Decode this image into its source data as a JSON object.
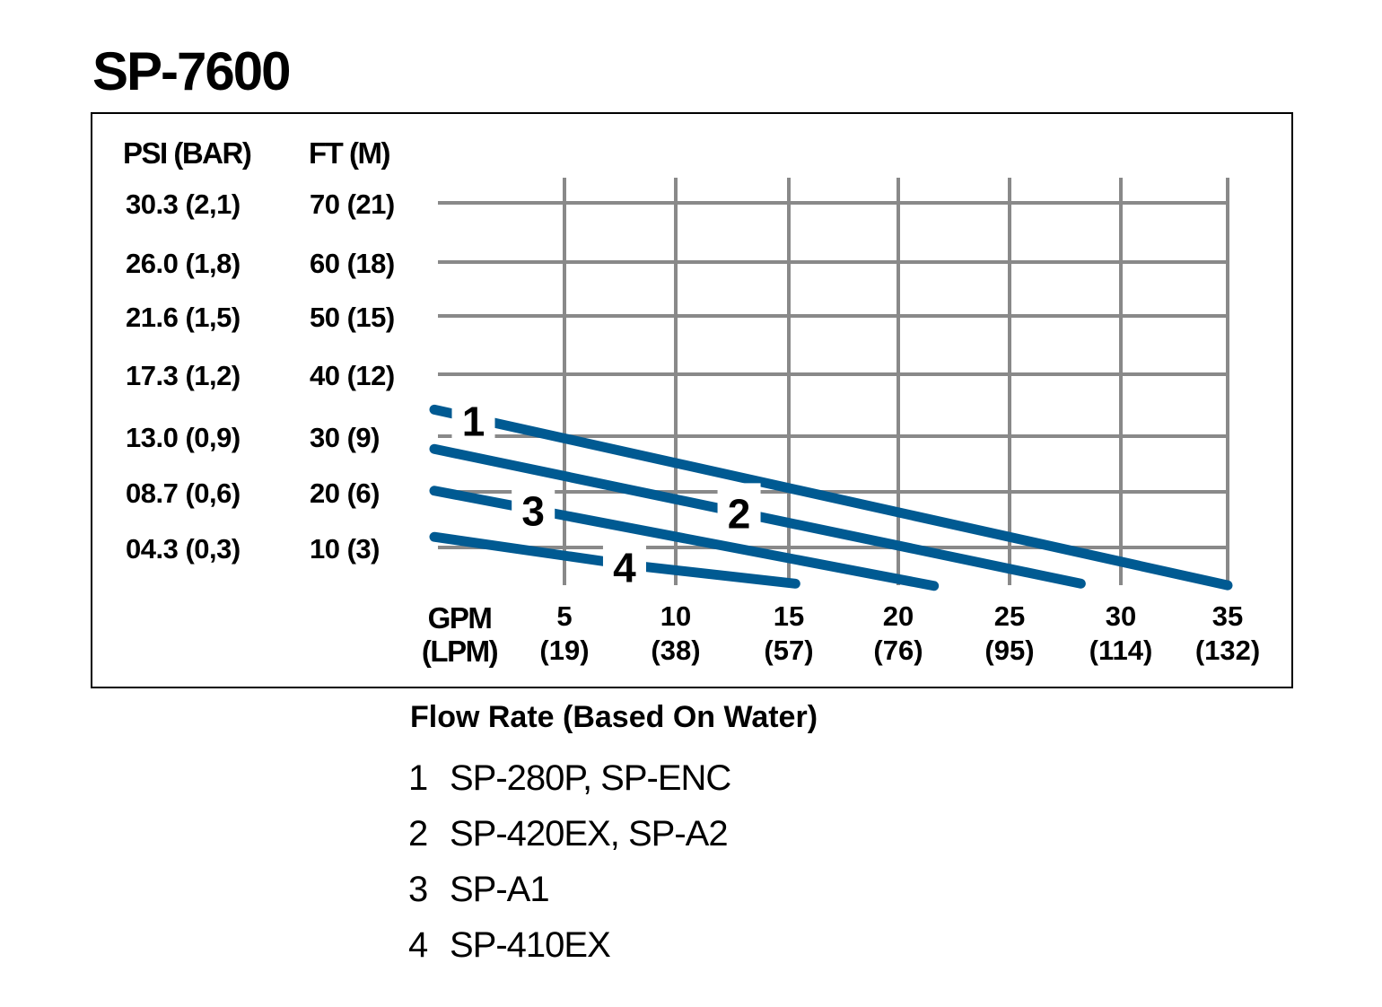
{
  "chart_data": {
    "type": "line",
    "title": "SP-7600",
    "xlabel": "Flow Rate (Based On Water)",
    "x_axis_label": [
      "GPM",
      "(LPM)"
    ],
    "y_axis_headers": [
      "PSI (BAR)",
      "FT (M)"
    ],
    "x_ticks": [
      {
        "gpm": 5,
        "top": "5",
        "bottom": "(19)"
      },
      {
        "gpm": 10,
        "top": "10",
        "bottom": "(38)"
      },
      {
        "gpm": 15,
        "top": "15",
        "bottom": "(57)"
      },
      {
        "gpm": 20,
        "top": "20",
        "bottom": "(76)"
      },
      {
        "gpm": 25,
        "top": "25",
        "bottom": "(95)"
      },
      {
        "gpm": 30,
        "top": "30",
        "bottom": "(114)"
      },
      {
        "gpm": 35,
        "top": "35",
        "bottom": "(132)"
      }
    ],
    "y_ticks": [
      {
        "ft": 70,
        "psi": "30.3 (2,1)",
        "ftlabel": "70 (21)"
      },
      {
        "ft": 60,
        "psi": "26.0 (1,8)",
        "ftlabel": "60 (18)"
      },
      {
        "ft": 50,
        "psi": "21.6 (1,5)",
        "ftlabel": "50 (15)"
      },
      {
        "ft": 40,
        "psi": "17.3 (1,2)",
        "ftlabel": "40 (12)"
      },
      {
        "ft": 30,
        "psi": "13.0 (0,9)",
        "ftlabel": "30 (9)"
      },
      {
        "ft": 20,
        "psi": "08.7 (0,6)",
        "ftlabel": "20 (6)"
      },
      {
        "ft": 10,
        "psi": "04.3 (0,3)",
        "ftlabel": "10 (3)"
      }
    ],
    "xlim": [
      0,
      35
    ],
    "ylim": [
      0,
      70
    ],
    "grid": true,
    "line_color": "#005a92",
    "grid_color": "#898989",
    "series": [
      {
        "id": "1",
        "points": [
          [
            0,
            34.3
          ],
          [
            35,
            3.2
          ]
        ]
      },
      {
        "id": "2",
        "points": [
          [
            0,
            27.7
          ],
          [
            28.2,
            3.5
          ]
        ]
      },
      {
        "id": "3",
        "points": [
          [
            0,
            20.2
          ],
          [
            21.6,
            3.1
          ]
        ]
      },
      {
        "id": "4",
        "points": [
          [
            0,
            11.9
          ],
          [
            8,
            6.8
          ],
          [
            15.3,
            3.5
          ]
        ]
      }
    ],
    "legend": [
      {
        "num": "1",
        "text": "SP-280P, SP-ENC"
      },
      {
        "num": "2",
        "text": "SP-420EX, SP-A2"
      },
      {
        "num": "3",
        "text": "SP-A1"
      },
      {
        "num": "4",
        "text": "SP-410EX"
      }
    ]
  }
}
